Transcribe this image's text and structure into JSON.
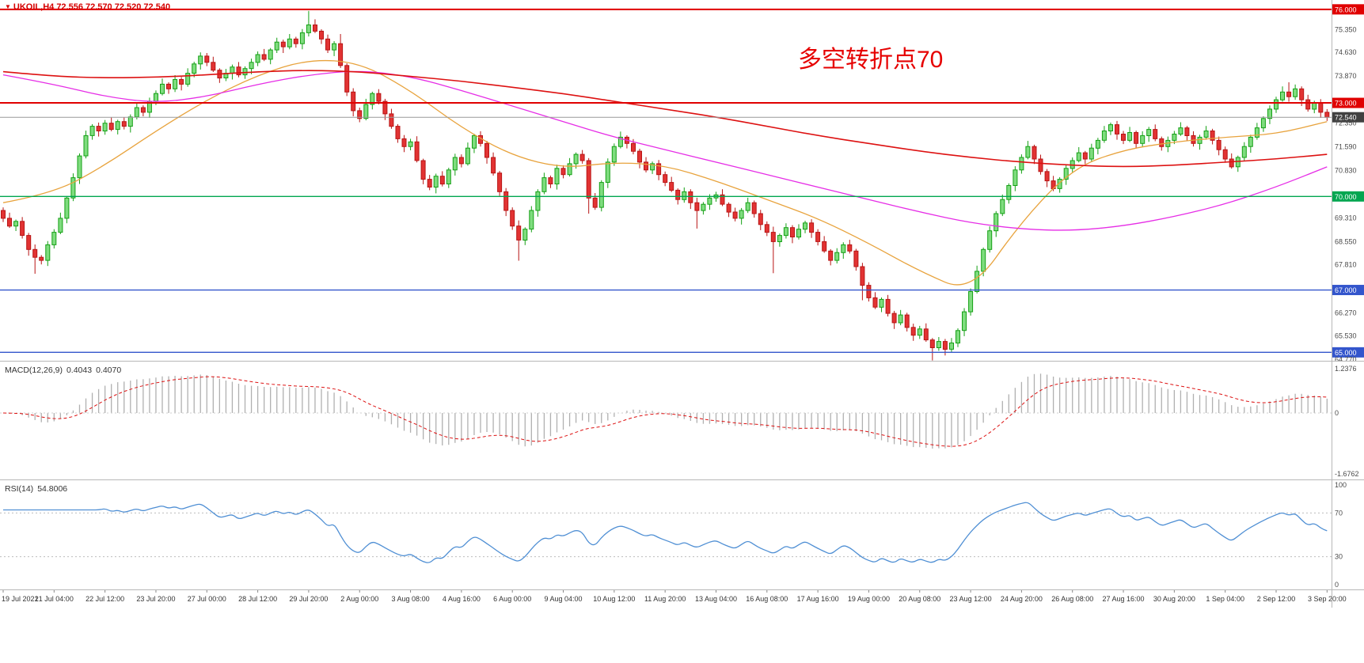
{
  "header": {
    "marker": "▼",
    "symbol_info": "UKOIL,H4 72.556 72.570 72.520 72.540"
  },
  "annotation": {
    "text": "多空转折点70",
    "color": "#e60000"
  },
  "colors": {
    "bull_fill": "#7fdc7f",
    "bull_stroke": "#14a014",
    "bear_fill": "#e23333",
    "bear_stroke": "#b81414",
    "ma_fast": "#e8a33d",
    "ma_mid": "#e62ee6",
    "ma_slow": "#dd1111",
    "macd_hist": "#b0b0b0",
    "macd_signal": "#dd1111",
    "rsi_line": "#4f8fd4",
    "current_bg": "#404040",
    "axis_text": "#4a4a4a"
  },
  "chart_data": {
    "type": "candlestick",
    "symbol": "UKOIL",
    "timeframe": "H4",
    "quote": {
      "open": "72.556",
      "high": "72.570",
      "low": "72.520",
      "close": "72.540"
    },
    "y_axis": {
      "tick_labels": [
        "75.350",
        "74.630",
        "73.870",
        "72.350",
        "71.590",
        "70.830",
        "69.310",
        "68.550",
        "67.810",
        "66.270",
        "65.530",
        "64.770"
      ],
      "tick_values": [
        75.35,
        74.63,
        73.87,
        72.35,
        71.59,
        70.83,
        69.31,
        68.55,
        67.81,
        66.27,
        65.53,
        64.77
      ],
      "min": 64.73,
      "max": 76.3
    },
    "levels": [
      {
        "label": "76.000",
        "value": 76.0,
        "color": "#e00000",
        "weight": 2
      },
      {
        "label": "73.000",
        "value": 73.0,
        "color": "#e00000",
        "weight": 2
      },
      {
        "label": "70.000",
        "value": 70.0,
        "color": "#00a650",
        "weight": 1.4
      },
      {
        "label": "67.000",
        "value": 67.0,
        "color": "#3355cc",
        "weight": 1.4
      },
      {
        "label": "65.000",
        "value": 65.0,
        "color": "#3355cc",
        "weight": 1.4
      }
    ],
    "current_price": {
      "label": "72.540",
      "value": 72.54
    },
    "x_axis": {
      "bars_per_label": 8,
      "labels": [
        "19 Jul 2021",
        "21 Jul 04:00",
        "22 Jul 12:00",
        "23 Jul 20:00",
        "27 Jul 00:00",
        "28 Jul 12:00",
        "29 Jul 20:00",
        "2 Aug 00:00",
        "3 Aug 08:00",
        "4 Aug 16:00",
        "6 Aug 00:00",
        "9 Aug 04:00",
        "10 Aug 12:00",
        "11 Aug 20:00",
        "13 Aug 04:00",
        "16 Aug 08:00",
        "17 Aug 16:00",
        "19 Aug 00:00",
        "20 Aug 08:00",
        "23 Aug 12:00",
        "24 Aug 20:00",
        "26 Aug 08:00",
        "27 Aug 16:00",
        "30 Aug 20:00",
        "1 Sep 04:00",
        "2 Sep 12:00",
        "3 Sep 20:00"
      ]
    },
    "candles": {
      "first_open": 69.55,
      "closes": [
        69.3,
        69.05,
        69.2,
        68.75,
        68.3,
        68.05,
        67.95,
        68.45,
        68.85,
        69.3,
        69.95,
        70.6,
        71.3,
        71.95,
        72.25,
        72.1,
        72.35,
        72.15,
        72.4,
        72.25,
        72.55,
        72.85,
        72.7,
        73.05,
        73.3,
        73.6,
        73.45,
        73.75,
        73.6,
        73.95,
        74.25,
        74.5,
        74.3,
        74.05,
        73.8,
        73.95,
        74.15,
        73.9,
        74.1,
        74.3,
        74.55,
        74.4,
        74.7,
        74.95,
        74.8,
        75.05,
        74.9,
        75.25,
        75.5,
        75.3,
        75.05,
        74.7,
        74.9,
        74.2,
        73.35,
        72.75,
        72.5,
        72.95,
        73.3,
        73.05,
        72.65,
        72.25,
        71.85,
        71.6,
        71.75,
        71.15,
        70.55,
        70.3,
        70.65,
        70.4,
        70.85,
        71.25,
        71.05,
        71.55,
        71.95,
        71.7,
        71.25,
        70.75,
        70.15,
        69.55,
        69.05,
        68.6,
        68.95,
        69.55,
        70.15,
        70.6,
        70.4,
        70.9,
        70.7,
        71.05,
        71.35,
        71.15,
        69.95,
        69.65,
        70.45,
        71.1,
        71.6,
        71.9,
        71.7,
        71.45,
        71.1,
        70.85,
        71.05,
        70.7,
        70.45,
        70.2,
        69.9,
        70.15,
        69.8,
        69.55,
        69.75,
        69.95,
        70.05,
        69.75,
        69.5,
        69.3,
        69.55,
        69.8,
        69.45,
        69.1,
        68.85,
        68.55,
        68.75,
        69.0,
        68.7,
        68.95,
        69.15,
        68.85,
        68.55,
        68.25,
        67.95,
        68.2,
        68.45,
        68.25,
        67.75,
        67.15,
        66.75,
        66.45,
        66.7,
        66.25,
        65.95,
        66.2,
        65.8,
        65.55,
        65.75,
        65.4,
        65.15,
        65.35,
        65.1,
        65.3,
        65.7,
        66.3,
        66.95,
        67.6,
        68.3,
        68.9,
        69.45,
        69.9,
        70.35,
        70.85,
        71.25,
        71.6,
        71.2,
        70.8,
        70.5,
        70.25,
        70.55,
        70.9,
        71.15,
        71.4,
        71.2,
        71.55,
        71.8,
        72.1,
        72.3,
        72.0,
        71.8,
        72.05,
        71.7,
        71.95,
        72.15,
        71.85,
        71.6,
        71.8,
        72.0,
        72.2,
        71.95,
        71.7,
        71.9,
        72.1,
        71.8,
        71.5,
        71.2,
        70.95,
        71.25,
        71.6,
        71.9,
        72.2,
        72.5,
        72.8,
        73.1,
        73.35,
        73.2,
        73.45,
        73.1,
        72.8,
        73.0,
        72.7,
        72.54
      ],
      "wick_pattern": [
        [
          0.1,
          0.12
        ],
        [
          0.18,
          0.06
        ],
        [
          0.06,
          0.16
        ],
        [
          0.14,
          0.1
        ],
        [
          0.08,
          0.2
        ],
        [
          0.16,
          0.08
        ],
        [
          0.07,
          0.13
        ],
        [
          0.12,
          0.18
        ]
      ],
      "long_wicks": {
        "5": [
          0,
          0.45
        ],
        "48": [
          0.35,
          0
        ],
        "53": [
          0.15,
          0
        ],
        "81": [
          0,
          0.6
        ],
        "92": [
          0,
          0.3
        ],
        "109": [
          0,
          0.5
        ],
        "121": [
          0,
          0.95
        ],
        "135": [
          0,
          0.3
        ],
        "146": [
          0,
          0.25
        ],
        "202": [
          0.25,
          0
        ]
      }
    },
    "overlays": [
      {
        "name": "ma-fast",
        "color_key": "ma_fast",
        "step": 8,
        "width": 1.3,
        "values": [
          69.8,
          70.1,
          71.0,
          72.1,
          73.1,
          73.9,
          74.4,
          74.3,
          73.4,
          72.2,
          71.3,
          70.9,
          71.1,
          71.0,
          70.5,
          69.9,
          69.3,
          68.5,
          67.6,
          66.9,
          69.2,
          70.9,
          71.5,
          71.75,
          71.9,
          72.0,
          72.4
        ]
      },
      {
        "name": "ma-mid",
        "color_key": "ma_mid",
        "step": 8,
        "width": 1.3,
        "values": [
          73.9,
          73.6,
          73.2,
          73.0,
          73.2,
          73.6,
          73.9,
          74.05,
          73.85,
          73.4,
          72.9,
          72.4,
          71.9,
          71.5,
          71.1,
          70.7,
          70.3,
          69.9,
          69.5,
          69.15,
          68.95,
          68.9,
          69.05,
          69.35,
          69.75,
          70.3,
          70.95
        ]
      },
      {
        "name": "ma-slow",
        "color_key": "ma_slow",
        "step": 8,
        "width": 1.6,
        "values": [
          74.0,
          73.85,
          73.8,
          73.82,
          73.9,
          74.0,
          74.05,
          74.0,
          73.85,
          73.7,
          73.5,
          73.3,
          73.05,
          72.8,
          72.55,
          72.25,
          71.95,
          71.7,
          71.45,
          71.25,
          71.1,
          71.0,
          70.95,
          71.0,
          71.1,
          71.2,
          71.35
        ]
      }
    ],
    "macd": {
      "label": "MACD(12,26,9)",
      "value_main": "0.4043",
      "value_signal": "0.4070",
      "fast": 12,
      "slow": 26,
      "signal": 9,
      "axis": {
        "top_label": "1.2376",
        "zero_label": "0",
        "bottom_label": "-1.6762"
      }
    },
    "rsi": {
      "label": "RSI(14)",
      "value": "54.8006",
      "period": 14,
      "axis_labels": [
        "100",
        "70",
        "30",
        "0"
      ],
      "guides": [
        70,
        30
      ]
    }
  }
}
